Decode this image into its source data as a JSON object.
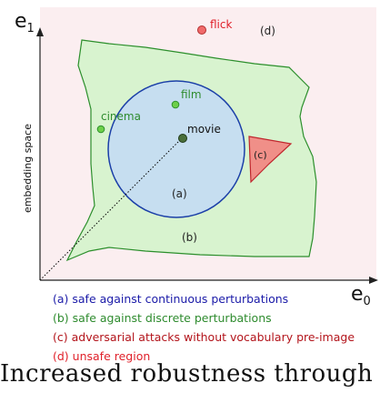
{
  "axes": {
    "y_label": "e",
    "y_sub": "1",
    "x_label": "e",
    "x_sub": "0",
    "vertical_label": "embedding space"
  },
  "points": {
    "flick": "flick",
    "film": "film",
    "cinema": "cinema",
    "movie": "movie"
  },
  "regions": {
    "a": "(a)",
    "b": "(b)",
    "c": "(c)",
    "d": "(d)"
  },
  "legend": [
    {
      "text": "(a) safe against continuous perturbations",
      "color": "#1a1aa8"
    },
    {
      "text": "(b) safe against discrete perturbations",
      "color": "#2e8b2e"
    },
    {
      "text": "(c) adversarial attacks without vocabulary pre-image",
      "color": "#b3141b"
    },
    {
      "text": "(d) unsafe region",
      "color": "#e0202a"
    }
  ],
  "caption": "Increased robustness through ret",
  "colors": {
    "background_region": "#fbeef0",
    "green_fill": "#d8f3cf",
    "green_stroke": "#2c8f2c",
    "blue_fill": "#c6def0",
    "blue_stroke": "#1b3fa8",
    "red_fill": "#f08f88",
    "red_stroke": "#c0262d",
    "flick_dot": "#f06a6a",
    "green_dot": "#6dcf4a",
    "movie_dot": "#4a6f3a"
  }
}
